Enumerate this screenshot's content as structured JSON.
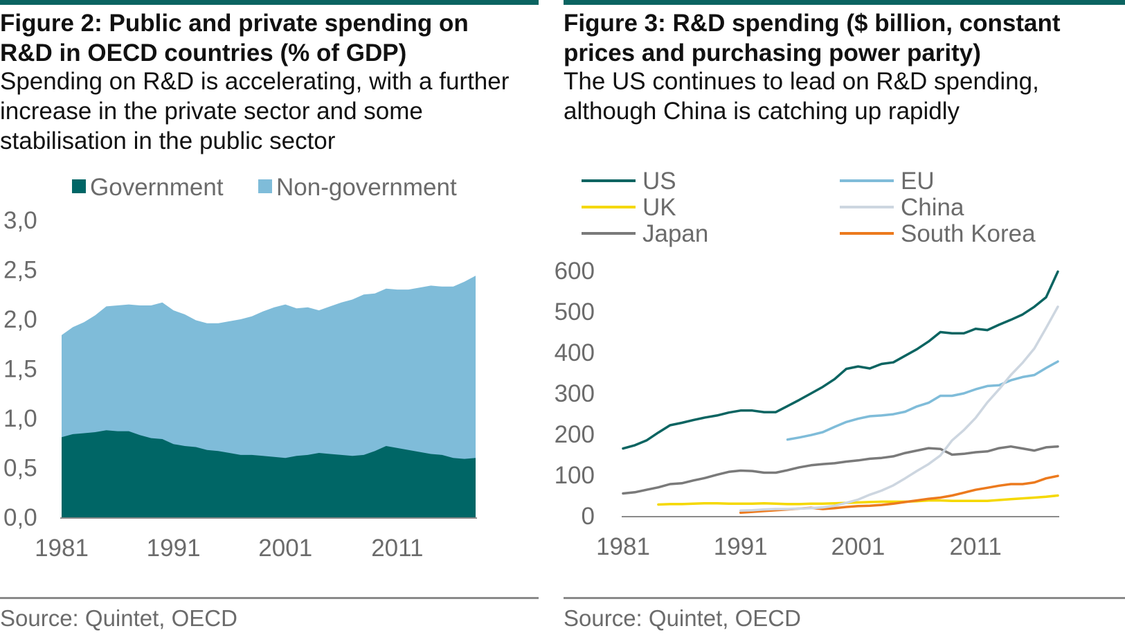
{
  "left": {
    "title": "Figure 2: Public and private spending on R&D in OECD countries (% of GDP)",
    "subtitle": "Spending on R&D is accelerating, with a further increase in the private sector and some stabilisation in the public sector",
    "source": "Source: Quintet, OECD"
  },
  "right": {
    "title": "Figure 3: R&D spending ($ billion, constant prices and purchasing power parity)",
    "subtitle": "The US continues to lead on R&D spending, although China is catching up rapidly",
    "source": "Source: Quintet, OECD"
  },
  "colors": {
    "rule": "#0b6461",
    "government": "#006666",
    "non_government": "#7fbcd9",
    "us": "#0b6461",
    "eu": "#7fbcd9",
    "uk": "#f5d800",
    "china": "#cdd6e0",
    "japan": "#7a7a7a",
    "south_korea": "#ec7a1e",
    "axis": "#8a8a8a",
    "text": "#6b6b6b"
  },
  "chart_data": [
    {
      "type": "area",
      "stacked": true,
      "legend_position": "top",
      "grid": false,
      "ylim": [
        0,
        3.0
      ],
      "y_ticks": [
        "0,0",
        "0,5",
        "1,0",
        "1,5",
        "2,0",
        "2,5",
        "3,0"
      ],
      "x_ticks": [
        1981,
        1991,
        2001,
        2011
      ],
      "x": [
        1981,
        1982,
        1983,
        1984,
        1985,
        1986,
        1987,
        1988,
        1989,
        1990,
        1991,
        1992,
        1993,
        1994,
        1995,
        1996,
        1997,
        1998,
        1999,
        2000,
        2001,
        2002,
        2003,
        2004,
        2005,
        2006,
        2007,
        2008,
        2009,
        2010,
        2011,
        2012,
        2013,
        2014,
        2015,
        2016,
        2017,
        2018
      ],
      "series": [
        {
          "name": "Government",
          "values": [
            0.81,
            0.84,
            0.85,
            0.86,
            0.88,
            0.87,
            0.87,
            0.83,
            0.8,
            0.79,
            0.74,
            0.72,
            0.71,
            0.68,
            0.67,
            0.65,
            0.63,
            0.63,
            0.62,
            0.61,
            0.6,
            0.62,
            0.63,
            0.65,
            0.64,
            0.63,
            0.62,
            0.63,
            0.67,
            0.72,
            0.7,
            0.68,
            0.66,
            0.64,
            0.63,
            0.6,
            0.59,
            0.6
          ]
        },
        {
          "name": "Non-government",
          "values": [
            1.03,
            1.08,
            1.12,
            1.18,
            1.25,
            1.27,
            1.28,
            1.31,
            1.34,
            1.38,
            1.35,
            1.33,
            1.28,
            1.28,
            1.29,
            1.33,
            1.37,
            1.4,
            1.46,
            1.51,
            1.55,
            1.49,
            1.49,
            1.44,
            1.49,
            1.54,
            1.58,
            1.62,
            1.59,
            1.59,
            1.6,
            1.62,
            1.66,
            1.7,
            1.7,
            1.73,
            1.79,
            1.84
          ]
        }
      ]
    },
    {
      "type": "line",
      "legend_position": "top",
      "grid": false,
      "ylim": [
        0,
        600
      ],
      "y_ticks": [
        0,
        100,
        200,
        300,
        400,
        500,
        600
      ],
      "x_ticks": [
        1981,
        1991,
        2001,
        2011
      ],
      "series": [
        {
          "name": "US",
          "x": [
            1981,
            1982,
            1983,
            1984,
            1985,
            1986,
            1987,
            1988,
            1989,
            1990,
            1991,
            1992,
            1993,
            1994,
            1995,
            1996,
            1997,
            1998,
            1999,
            2000,
            2001,
            2002,
            2003,
            2004,
            2005,
            2006,
            2007,
            2008,
            2009,
            2010,
            2011,
            2012,
            2013,
            2014,
            2015,
            2016,
            2017,
            2018
          ],
          "values": [
            165,
            173,
            185,
            204,
            222,
            228,
            235,
            241,
            246,
            253,
            258,
            258,
            254,
            254,
            269,
            284,
            300,
            316,
            335,
            360,
            366,
            361,
            372,
            376,
            392,
            408,
            427,
            450,
            447,
            447,
            458,
            455,
            468,
            480,
            493,
            512,
            535,
            598
          ]
        },
        {
          "name": "EU",
          "x": [
            1995,
            1996,
            1997,
            1998,
            1999,
            2000,
            2001,
            2002,
            2003,
            2004,
            2005,
            2006,
            2007,
            2008,
            2009,
            2010,
            2011,
            2012,
            2013,
            2014,
            2015,
            2016,
            2017,
            2018
          ],
          "values": [
            187,
            192,
            198,
            205,
            218,
            230,
            238,
            244,
            246,
            249,
            255,
            268,
            277,
            294,
            294,
            300,
            310,
            318,
            320,
            332,
            340,
            345,
            362,
            378
          ]
        },
        {
          "name": "UK",
          "x": [
            1981,
            1982,
            1983,
            1984,
            1985,
            1986,
            1987,
            1988,
            1989,
            1990,
            1991,
            1992,
            1993,
            1994,
            1995,
            1996,
            1997,
            1998,
            1999,
            2000,
            2001,
            2002,
            2003,
            2004,
            2005,
            2006,
            2007,
            2008,
            2009,
            2010,
            2011,
            2012,
            2013,
            2014,
            2015,
            2016,
            2017,
            2018
          ],
          "values": [
            null,
            null,
            null,
            28,
            29,
            29,
            30,
            31,
            31,
            30,
            30,
            30,
            31,
            30,
            29,
            29,
            30,
            30,
            31,
            32,
            33,
            34,
            35,
            35,
            35,
            36,
            38,
            38,
            37,
            37,
            37,
            37,
            39,
            41,
            43,
            45,
            47,
            50
          ]
        },
        {
          "name": "China",
          "x": [
            1991,
            1992,
            1993,
            1994,
            1995,
            1996,
            1997,
            1998,
            1999,
            2000,
            2001,
            2002,
            2003,
            2004,
            2005,
            2006,
            2007,
            2008,
            2009,
            2010,
            2011,
            2012,
            2013,
            2014,
            2015,
            2016,
            2017,
            2018
          ],
          "values": [
            13,
            14,
            16,
            17,
            17,
            18,
            19,
            21,
            25,
            32,
            40,
            52,
            62,
            75,
            92,
            110,
            127,
            148,
            185,
            210,
            240,
            278,
            310,
            345,
            375,
            410,
            460,
            512
          ]
        },
        {
          "name": "Japan",
          "x": [
            1981,
            1982,
            1983,
            1984,
            1985,
            1986,
            1987,
            1988,
            1989,
            1990,
            1991,
            1992,
            1993,
            1994,
            1995,
            1996,
            1997,
            1998,
            1999,
            2000,
            2001,
            2002,
            2003,
            2004,
            2005,
            2006,
            2007,
            2008,
            2009,
            2010,
            2011,
            2012,
            2013,
            2014,
            2015,
            2016,
            2017,
            2018
          ],
          "values": [
            55,
            58,
            64,
            70,
            78,
            80,
            87,
            93,
            101,
            108,
            111,
            110,
            106,
            106,
            112,
            119,
            124,
            127,
            129,
            133,
            136,
            140,
            142,
            146,
            154,
            160,
            166,
            164,
            150,
            152,
            156,
            158,
            166,
            170,
            165,
            160,
            168,
            170
          ]
        },
        {
          "name": "South Korea",
          "x": [
            1991,
            1992,
            1993,
            1994,
            1995,
            1996,
            1997,
            1998,
            1999,
            2000,
            2001,
            2002,
            2003,
            2004,
            2005,
            2006,
            2007,
            2008,
            2009,
            2010,
            2011,
            2012,
            2013,
            2014,
            2015,
            2016,
            2017,
            2018
          ],
          "values": [
            8,
            10,
            12,
            14,
            16,
            18,
            20,
            17,
            19,
            22,
            24,
            25,
            27,
            30,
            34,
            38,
            42,
            45,
            50,
            57,
            64,
            69,
            74,
            78,
            78,
            82,
            92,
            98
          ]
        }
      ]
    }
  ]
}
